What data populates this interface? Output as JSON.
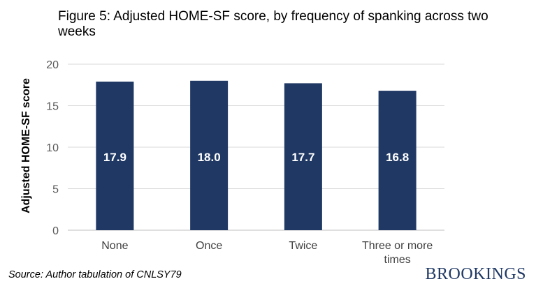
{
  "source": "Source: Author tabulation of CNLSY79",
  "brand": "BROOKINGS",
  "colors": {
    "bar": "#1f3864",
    "grid": "#d9d9d9",
    "label": "#ffffff"
  },
  "chart_data": {
    "type": "bar",
    "title": "Figure 5: Adjusted HOME-SF score, by frequency of spanking across two weeks",
    "xlabel": "",
    "ylabel": "Adjusted HOME-SF score",
    "categories": [
      "None",
      "Once",
      "Twice",
      "Three or more times"
    ],
    "values": [
      17.9,
      18.0,
      17.7,
      16.8
    ],
    "data_labels": [
      "17.9",
      "18.0",
      "17.7",
      "16.8"
    ],
    "yticks": [
      0,
      5,
      10,
      15,
      20
    ],
    "ylim": [
      0,
      20
    ],
    "grid": true,
    "legend": "none"
  }
}
